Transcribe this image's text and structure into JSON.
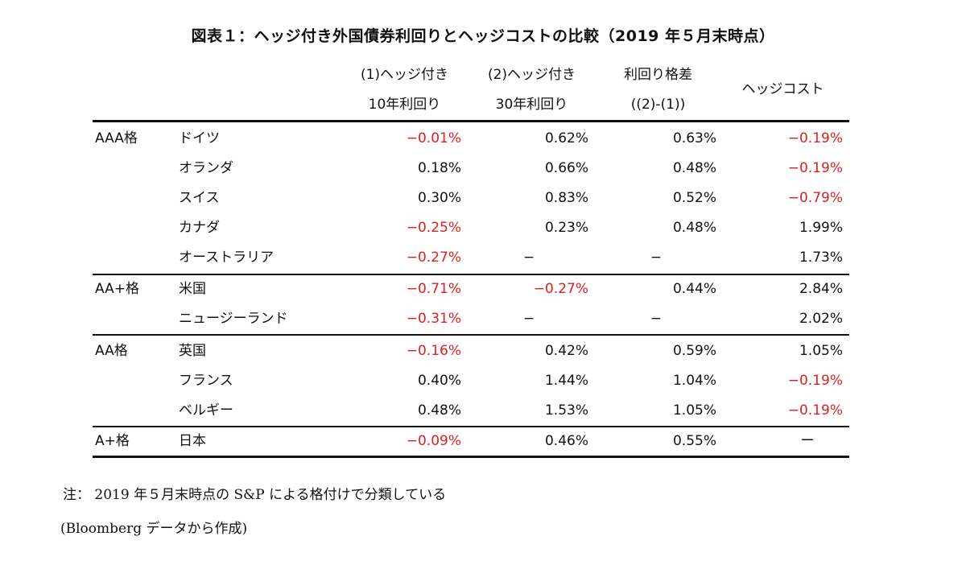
{
  "title": "図表１：ヘッジ付き外国債券利回りとヘッジコストの比較（2019 年５月末時点）",
  "headers": [
    {
      "line1": "(1)ヘッジ付き",
      "line2": "10年利回り"
    },
    {
      "line1": "(2)ヘッジ付き",
      "line2": "30年利回り"
    },
    {
      "line1": "利回り格差",
      "line2": "((2)-(1))"
    },
    {
      "line1": "ヘッジコスト",
      "line2": ""
    }
  ],
  "colors": {
    "negative": "#e0201f",
    "text": "#111111"
  },
  "rows": [
    {
      "group": "AAA格",
      "country": "ドイツ",
      "values": [
        {
          "text": "−0.01%",
          "neg": true
        },
        {
          "text": "0.62%",
          "neg": false
        },
        {
          "text": "0.63%",
          "neg": false
        },
        {
          "text": "−0.19%",
          "neg": true
        }
      ]
    },
    {
      "group": "",
      "country": "オランダ",
      "values": [
        {
          "text": "0.18%",
          "neg": false
        },
        {
          "text": "0.66%",
          "neg": false
        },
        {
          "text": "0.48%",
          "neg": false
        },
        {
          "text": "−0.19%",
          "neg": true
        }
      ]
    },
    {
      "group": "",
      "country": "スイス",
      "values": [
        {
          "text": "0.30%",
          "neg": false
        },
        {
          "text": "0.83%",
          "neg": false
        },
        {
          "text": "0.52%",
          "neg": false
        },
        {
          "text": "−0.79%",
          "neg": true
        }
      ]
    },
    {
      "group": "",
      "country": "カナダ",
      "values": [
        {
          "text": "−0.25%",
          "neg": true
        },
        {
          "text": "0.23%",
          "neg": false
        },
        {
          "text": "0.48%",
          "neg": false
        },
        {
          "text": "1.99%",
          "neg": false
        }
      ]
    },
    {
      "group": "",
      "country": "オーストラリア",
      "values": [
        {
          "text": "−0.27%",
          "neg": true
        },
        {
          "text": "−",
          "neg": false,
          "dash": true
        },
        {
          "text": "−",
          "neg": false,
          "dash": true
        },
        {
          "text": "1.73%",
          "neg": false
        }
      ]
    },
    {
      "group": "AA+格",
      "country": "米国",
      "values": [
        {
          "text": "−0.71%",
          "neg": true
        },
        {
          "text": "−0.27%",
          "neg": true
        },
        {
          "text": "0.44%",
          "neg": false
        },
        {
          "text": "2.84%",
          "neg": false
        }
      ]
    },
    {
      "group": "",
      "country": "ニュージーランド",
      "values": [
        {
          "text": "−0.31%",
          "neg": true
        },
        {
          "text": "−",
          "neg": false,
          "dash": true
        },
        {
          "text": "−",
          "neg": false,
          "dash": true
        },
        {
          "text": "2.02%",
          "neg": false
        }
      ]
    },
    {
      "group": "AA格",
      "country": "英国",
      "values": [
        {
          "text": "−0.16%",
          "neg": true
        },
        {
          "text": "0.42%",
          "neg": false
        },
        {
          "text": "0.59%",
          "neg": false
        },
        {
          "text": "1.05%",
          "neg": false
        }
      ]
    },
    {
      "group": "",
      "country": "フランス",
      "values": [
        {
          "text": "0.40%",
          "neg": false
        },
        {
          "text": "1.44%",
          "neg": false
        },
        {
          "text": "1.04%",
          "neg": false
        },
        {
          "text": "−0.19%",
          "neg": true
        }
      ]
    },
    {
      "group": "",
      "country": "ベルギー",
      "values": [
        {
          "text": "0.48%",
          "neg": false
        },
        {
          "text": "1.53%",
          "neg": false
        },
        {
          "text": "1.05%",
          "neg": false
        },
        {
          "text": "−0.19%",
          "neg": true
        }
      ]
    },
    {
      "group": "A+格",
      "country": "日本",
      "values": [
        {
          "text": "−0.09%",
          "neg": true
        },
        {
          "text": "0.46%",
          "neg": false
        },
        {
          "text": "0.55%",
          "neg": false
        },
        {
          "text": "ー",
          "neg": false,
          "dash": true
        }
      ]
    }
  ],
  "notes": {
    "note1": "注：  2019 年５月末時点の S&P による格付けで分類している",
    "note2": "(Bloomberg データから作成)"
  }
}
